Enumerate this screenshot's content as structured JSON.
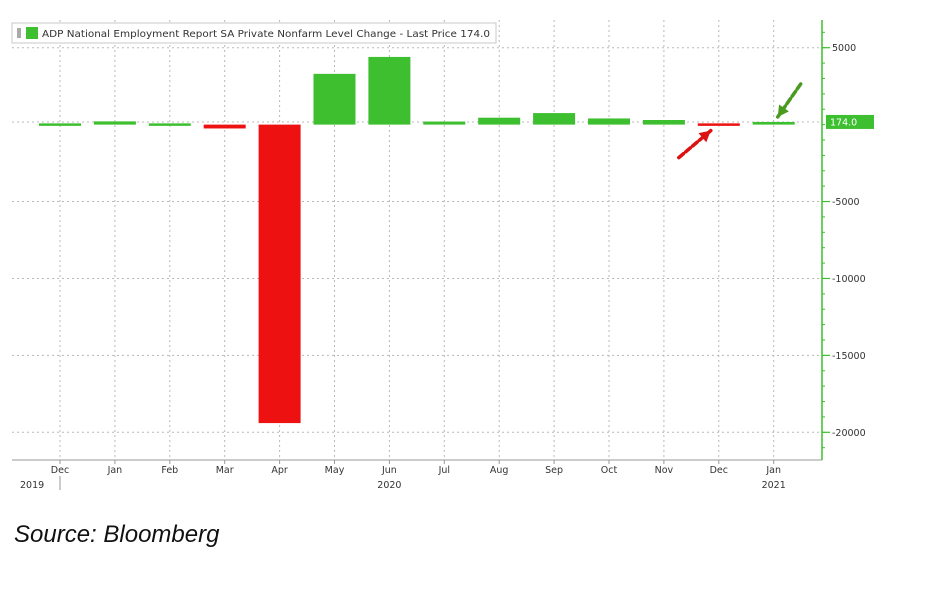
{
  "chart_data": {
    "type": "bar",
    "legend_label": "ADP National Employment Report SA Private Nonfarm Level Change - Last Price 174.0",
    "legend_position": "top-left",
    "last_price_label": "174.0",
    "last_price": 174,
    "categories": [
      "Dec",
      "Jan",
      "Feb",
      "Mar",
      "Apr",
      "May",
      "Jun",
      "Jul",
      "Aug",
      "Sep",
      "Oct",
      "Nov",
      "Dec",
      "Jan"
    ],
    "year_labels": [
      {
        "label": "2019",
        "category_index": 0
      },
      {
        "label": "2020",
        "category_index": 6
      },
      {
        "label": "2021",
        "category_index": 13
      }
    ],
    "values": [
      140,
      210,
      150,
      -250,
      -19400,
      3300,
      4400,
      200,
      450,
      750,
      400,
      300,
      -80,
      174
    ],
    "colors": {
      "positive": "#3dbf2f",
      "negative": "#ee1111",
      "axis": "#3dbf2f",
      "grid": "#b8b8b8",
      "tag": "#3dbf2f"
    },
    "y_ticks": [
      {
        "value": 5000,
        "label": "5000"
      },
      {
        "value": -5000,
        "label": "-5000"
      },
      {
        "value": -10000,
        "label": "-10000"
      },
      {
        "value": -15000,
        "label": "-15000"
      },
      {
        "value": -20000,
        "label": "-20000"
      }
    ],
    "ylim": [
      -21800,
      6800
    ],
    "grid": true,
    "annotations": [
      {
        "type": "arrow",
        "color": "#dd1111",
        "points_to_category": 12
      },
      {
        "type": "arrow",
        "color": "#4a9a20",
        "points_to_category": 13
      }
    ]
  },
  "source_text": "Source: Bloomberg"
}
